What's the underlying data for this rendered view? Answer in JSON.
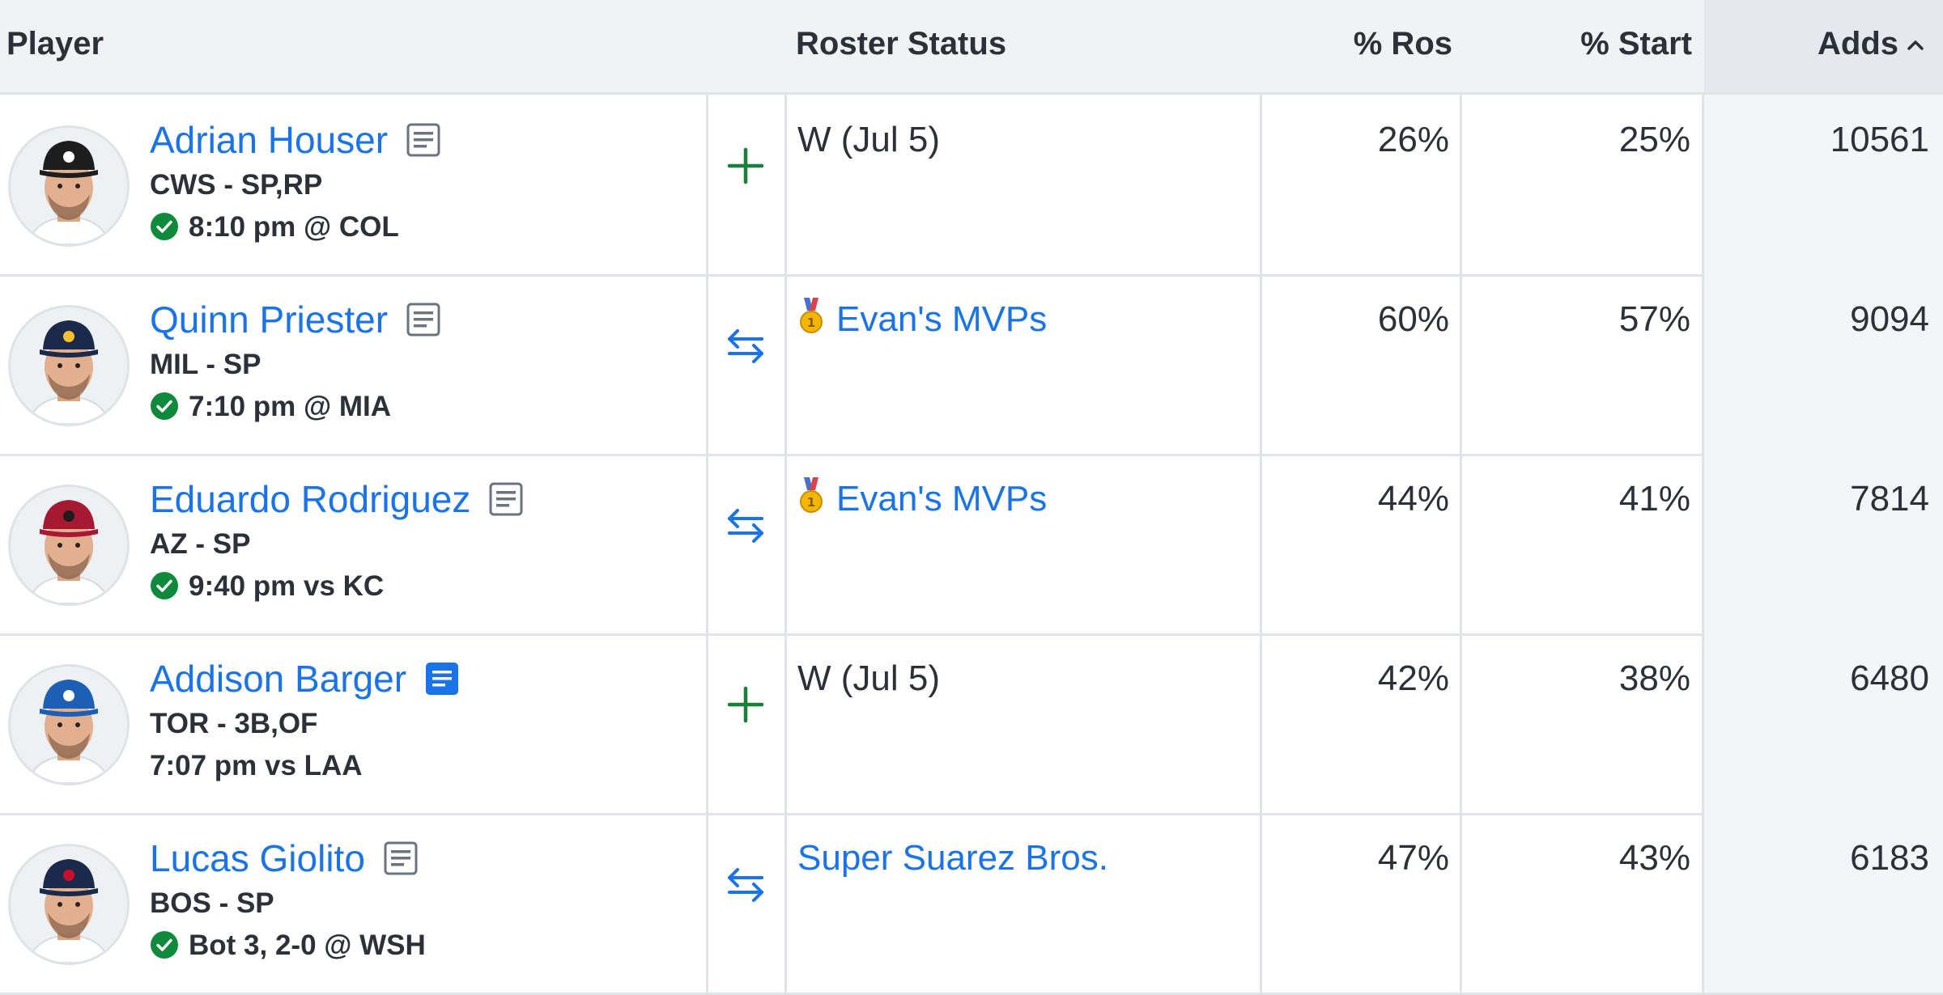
{
  "header": {
    "player": "Player",
    "roster_status": "Roster Status",
    "pct_ros": "% Ros",
    "pct_start": "% Start",
    "adds": "Adds",
    "adds_sort_icon": "chevron-up-icon"
  },
  "rows": [
    {
      "name": "Adrian Houser",
      "team_pos": "CWS - SP,RP",
      "game": "8:10 pm @ COL",
      "game_confirmed": true,
      "note_highlight": false,
      "action": "add",
      "status": "W (Jul 5)",
      "status_link": false,
      "medal": false,
      "ros": "26%",
      "start": "25%",
      "adds": "10561",
      "cap_color": "#1d1d1d",
      "logo_color": "#ffffff"
    },
    {
      "name": "Quinn Priester",
      "team_pos": "MIL - SP",
      "game": "7:10 pm @ MIA",
      "game_confirmed": true,
      "note_highlight": false,
      "action": "trade",
      "status": "Evan's MVPs",
      "status_link": true,
      "medal": true,
      "ros": "60%",
      "start": "57%",
      "adds": "9094",
      "cap_color": "#1b2a4a",
      "logo_color": "#f2c230"
    },
    {
      "name": "Eduardo Rodriguez",
      "team_pos": "AZ - SP",
      "game": "9:40 pm vs KC",
      "game_confirmed": true,
      "note_highlight": false,
      "action": "trade",
      "status": "Evan's MVPs",
      "status_link": true,
      "medal": true,
      "ros": "44%",
      "start": "41%",
      "adds": "7814",
      "cap_color": "#a71930",
      "logo_color": "#1d1d1d"
    },
    {
      "name": "Addison Barger",
      "team_pos": "TOR - 3B,OF",
      "game": "7:07 pm vs LAA",
      "game_confirmed": false,
      "note_highlight": true,
      "action": "add",
      "status": "W (Jul 5)",
      "status_link": false,
      "medal": false,
      "ros": "42%",
      "start": "38%",
      "adds": "6480",
      "cap_color": "#1d5fb5",
      "logo_color": "#ffffff"
    },
    {
      "name": "Lucas Giolito",
      "team_pos": "BOS - SP",
      "game": "Bot 3, 2-0 @ WSH",
      "game_confirmed": true,
      "note_highlight": false,
      "action": "trade",
      "status": "Super Suarez Bros.",
      "status_link": true,
      "medal": false,
      "ros": "47%",
      "start": "43%",
      "adds": "6183",
      "cap_color": "#1b2a4a",
      "logo_color": "#c8102e"
    }
  ],
  "colors": {
    "link": "#1a73e8",
    "add_green": "#188038",
    "check_green": "#0f8a3c",
    "trade_blue": "#1a73e8"
  }
}
